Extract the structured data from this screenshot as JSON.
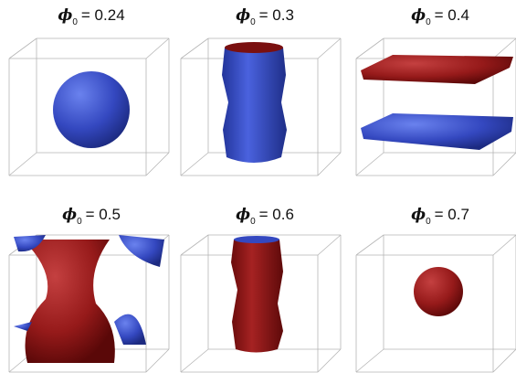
{
  "panels": [
    {
      "symbol": "ϕ",
      "subscript": "0",
      "value": "= 0.24"
    },
    {
      "symbol": "ϕ",
      "subscript": "0",
      "value": "= 0.3"
    },
    {
      "symbol": "ϕ",
      "subscript": "0",
      "value": "= 0.4"
    },
    {
      "symbol": "ϕ",
      "subscript": "0",
      "value": "= 0.5"
    },
    {
      "symbol": "ϕ",
      "subscript": "0",
      "value": "= 0.6"
    },
    {
      "symbol": "ϕ",
      "subscript": "0",
      "value": "= 0.7"
    }
  ]
}
